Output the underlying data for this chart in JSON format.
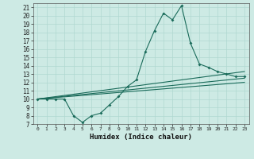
{
  "xlabel": "Humidex (Indice chaleur)",
  "background_color": "#cdeae4",
  "grid_color": "#b0d8d0",
  "line_color": "#1a6b5a",
  "xlim": [
    -0.5,
    23.5
  ],
  "ylim": [
    7,
    21.5
  ],
  "yticks": [
    7,
    8,
    9,
    10,
    11,
    12,
    13,
    14,
    15,
    16,
    17,
    18,
    19,
    20,
    21
  ],
  "xticks": [
    0,
    1,
    2,
    3,
    4,
    5,
    6,
    7,
    8,
    9,
    10,
    11,
    12,
    13,
    14,
    15,
    16,
    17,
    18,
    19,
    20,
    21,
    22,
    23
  ],
  "lines": [
    {
      "x": [
        0,
        1,
        2,
        3,
        4,
        5,
        6,
        7,
        8,
        9,
        10,
        11,
        12,
        13,
        14,
        15,
        16,
        17,
        18,
        19,
        20,
        21,
        22,
        23
      ],
      "y": [
        10,
        10,
        10,
        10,
        8,
        7.2,
        8.0,
        8.3,
        9.3,
        10.3,
        11.5,
        12.3,
        15.7,
        18.2,
        20.3,
        19.5,
        21.2,
        16.7,
        14.2,
        13.8,
        13.3,
        13.0,
        12.7,
        12.7
      ],
      "marker": true
    },
    {
      "x": [
        0,
        23
      ],
      "y": [
        10,
        13.3
      ],
      "marker": false
    },
    {
      "x": [
        0,
        23
      ],
      "y": [
        10,
        12.5
      ],
      "marker": false
    },
    {
      "x": [
        0,
        23
      ],
      "y": [
        10,
        12.0
      ],
      "marker": false
    }
  ]
}
